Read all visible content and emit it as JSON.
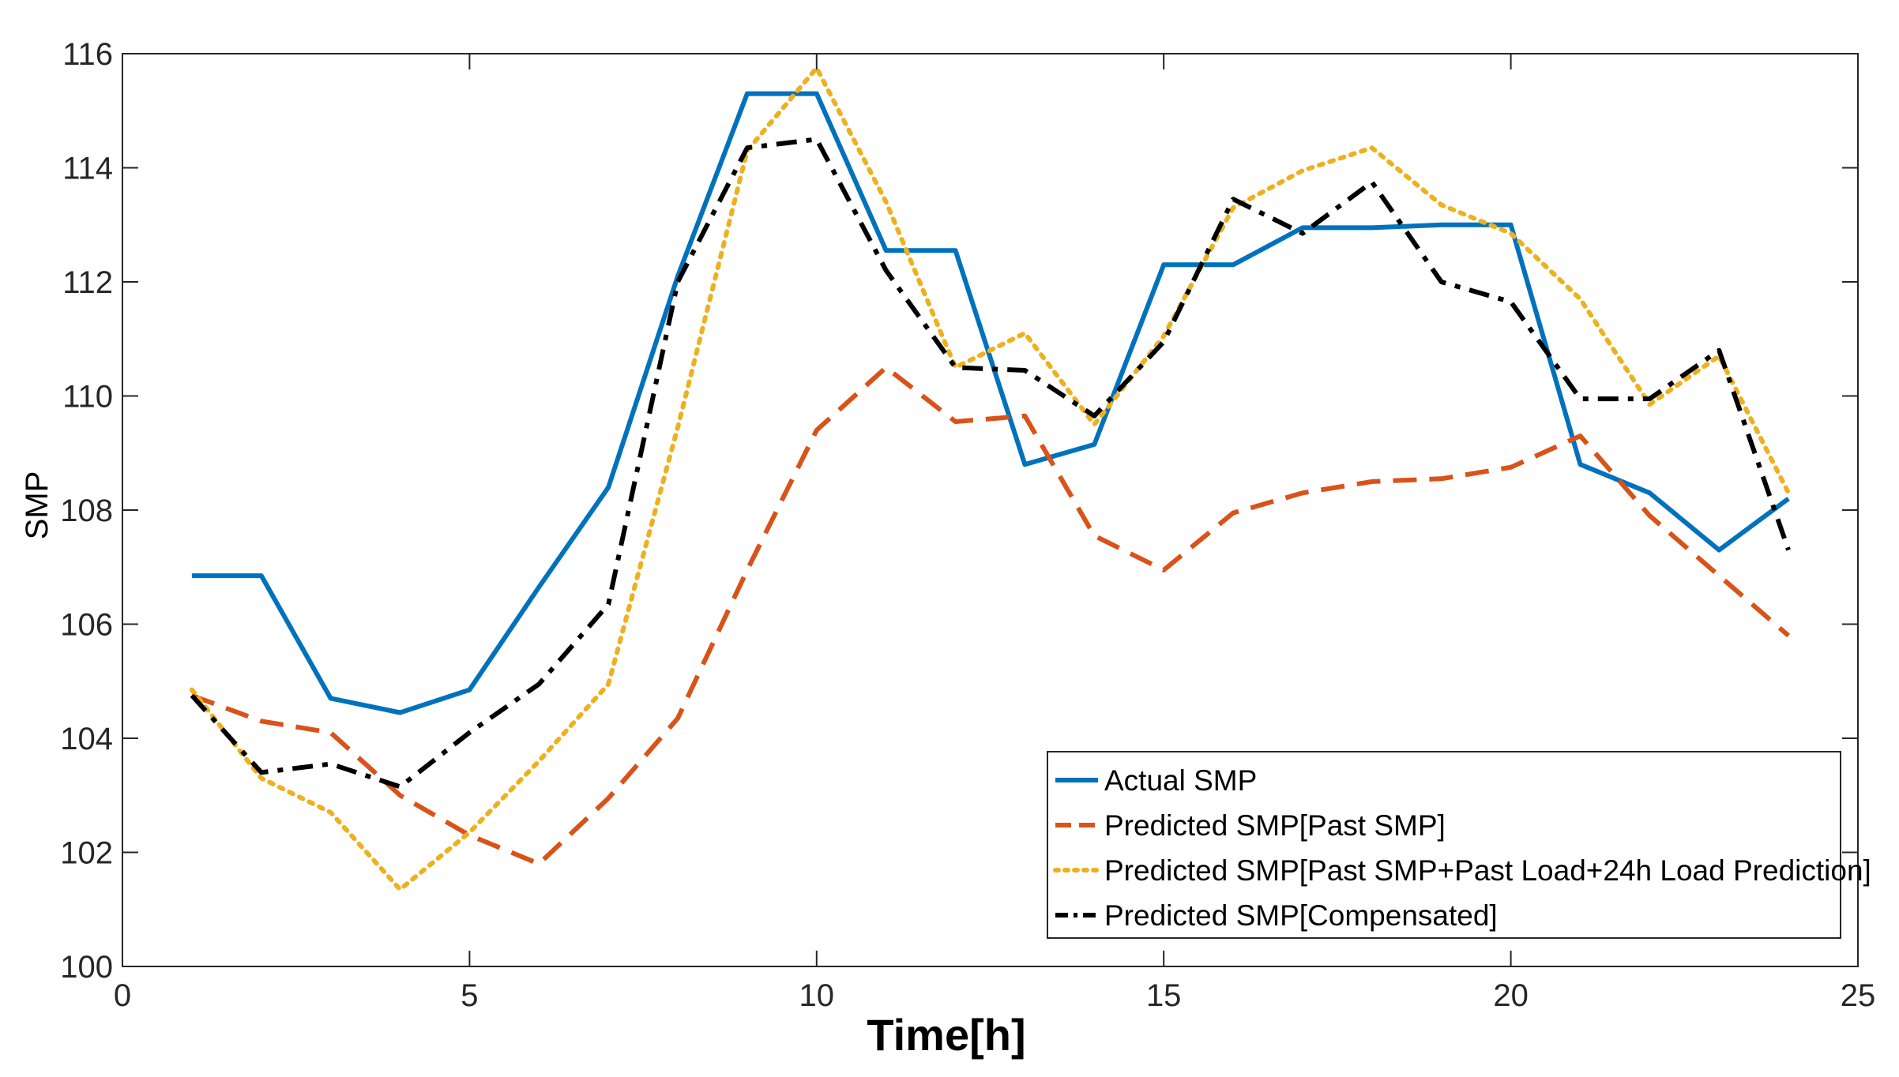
{
  "chart_data": {
    "type": "line",
    "title": "",
    "xlabel": "Time[h]",
    "ylabel": "SMP",
    "xlim": [
      0,
      25
    ],
    "ylim": [
      100,
      116
    ],
    "xticks": [
      0,
      5,
      10,
      15,
      20,
      25
    ],
    "yticks": [
      100,
      102,
      104,
      106,
      108,
      110,
      112,
      114,
      116
    ],
    "grid": false,
    "legend_position": "bottom-right",
    "x": [
      1,
      2,
      3,
      4,
      5,
      6,
      7,
      8,
      9,
      10,
      11,
      12,
      13,
      14,
      15,
      16,
      17,
      18,
      19,
      20,
      21,
      22,
      23,
      24
    ],
    "series": [
      {
        "name": "Actual SMP",
        "color": "#0072BD",
        "style": "solid",
        "values": [
          106.85,
          106.85,
          104.7,
          104.45,
          104.85,
          106.65,
          108.4,
          112.1,
          115.3,
          115.3,
          112.55,
          112.55,
          108.8,
          109.15,
          112.3,
          112.3,
          112.95,
          112.95,
          113.0,
          113.0,
          108.8,
          108.3,
          107.3,
          108.2
        ]
      },
      {
        "name": "Predicted SMP[Past SMP]",
        "color": "#D95319",
        "style": "dashed",
        "values": [
          104.75,
          104.3,
          104.1,
          103.0,
          102.3,
          101.8,
          102.95,
          104.35,
          106.95,
          109.4,
          110.5,
          109.55,
          109.65,
          107.55,
          106.95,
          107.95,
          108.3,
          108.5,
          108.55,
          108.75,
          109.3,
          107.9,
          106.85,
          105.8
        ]
      },
      {
        "name": "Predicted SMP[Past SMP+Past Load+24h Load Prediction]",
        "color": "#EDB120",
        "style": "dotted",
        "values": [
          104.85,
          103.3,
          102.7,
          101.35,
          102.35,
          103.6,
          104.95,
          109.45,
          114.3,
          115.75,
          113.4,
          110.5,
          111.1,
          109.5,
          111.05,
          113.3,
          113.95,
          114.35,
          113.35,
          112.85,
          111.7,
          109.85,
          110.7,
          108.3
        ]
      },
      {
        "name": "Predicted SMP[Compensated]",
        "color": "#000000",
        "style": "dashdot",
        "values": [
          104.75,
          103.4,
          103.55,
          103.15,
          104.1,
          104.95,
          106.35,
          112.0,
          114.35,
          114.5,
          112.2,
          110.5,
          110.45,
          109.65,
          110.95,
          113.45,
          112.85,
          113.75,
          112.0,
          111.65,
          109.95,
          109.95,
          110.8,
          107.3
        ]
      }
    ]
  }
}
